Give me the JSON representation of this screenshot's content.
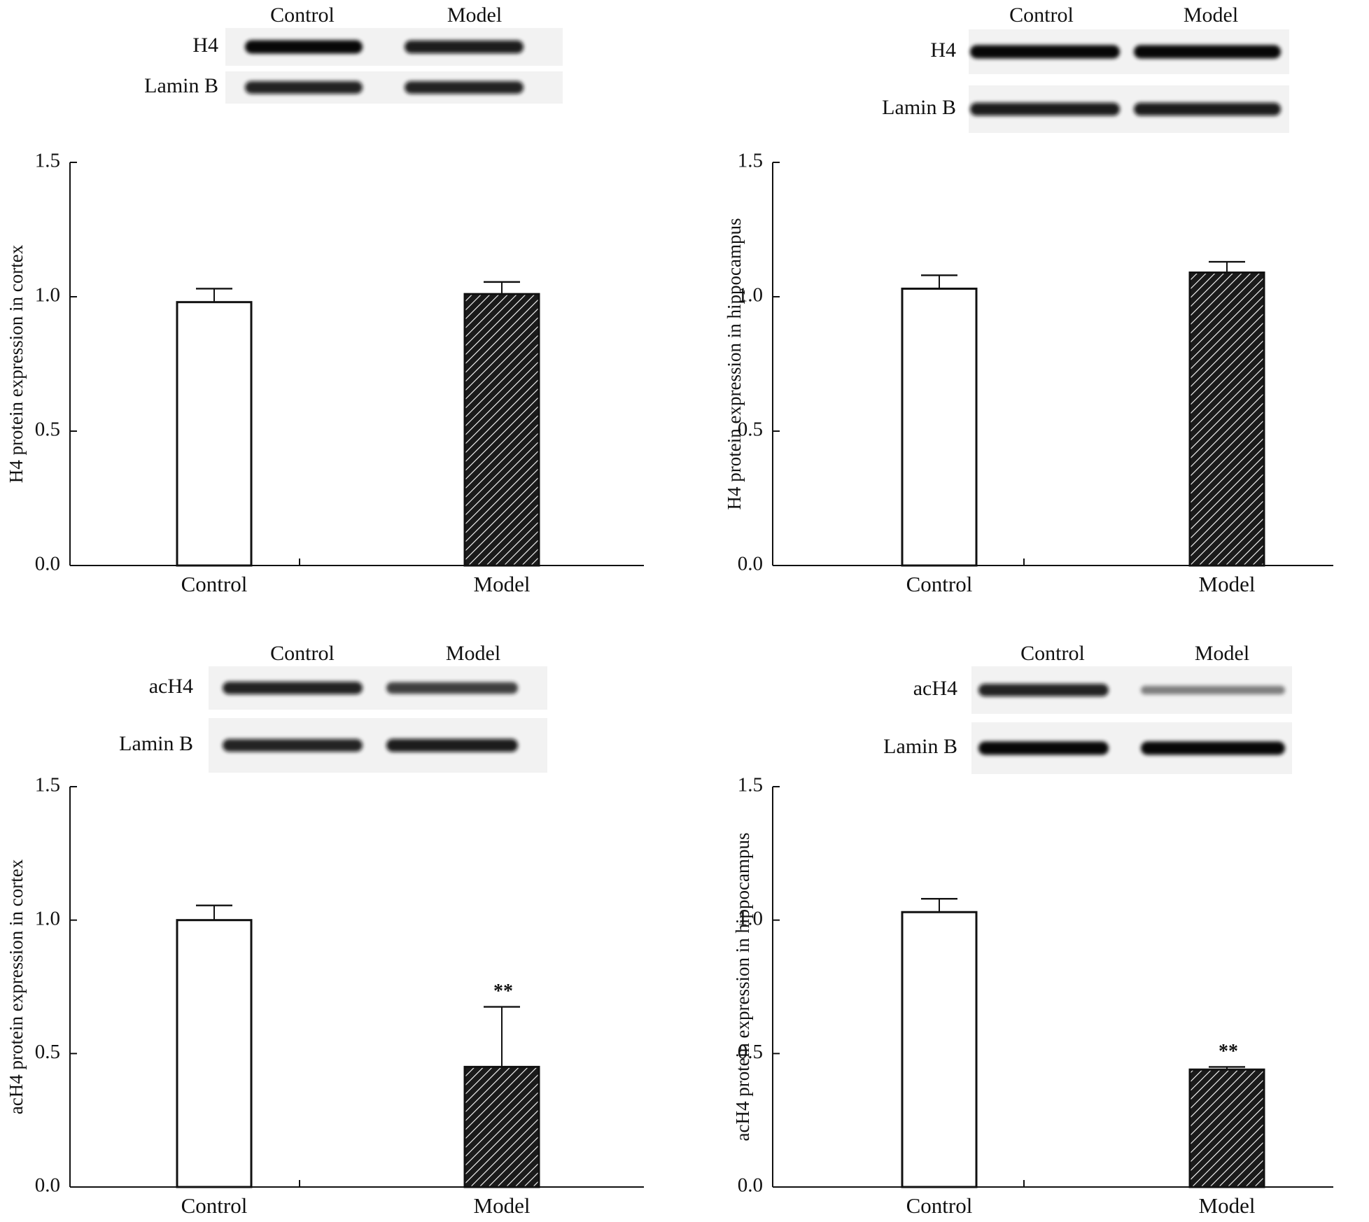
{
  "figure": {
    "panels": [
      {
        "id": "h4-cortex",
        "blot": {
          "lanes": [
            "Control",
            "Model"
          ],
          "rows": [
            {
              "label": "H4",
              "intensity": [
                0.95,
                0.9
              ]
            },
            {
              "label": "Lamin B",
              "intensity": [
                0.85,
                0.85
              ]
            }
          ]
        }
      },
      {
        "id": "h4-hippocampus",
        "blot": {
          "lanes": [
            "Control",
            "Model"
          ],
          "rows": [
            {
              "label": "H4",
              "intensity": [
                0.95,
                0.95
              ]
            },
            {
              "label": "Lamin B",
              "intensity": [
                0.9,
                0.9
              ]
            }
          ]
        }
      },
      {
        "id": "ach4-cortex",
        "blot": {
          "lanes": [
            "Control",
            "Model"
          ],
          "rows": [
            {
              "label": "acH4",
              "intensity": [
                0.85,
                0.75
              ]
            },
            {
              "label": "Lamin B",
              "intensity": [
                0.85,
                0.9
              ]
            }
          ]
        }
      },
      {
        "id": "ach4-hippocampus",
        "blot": {
          "lanes": [
            "Control",
            "Model"
          ],
          "rows": [
            {
              "label": "acH4",
              "intensity": [
                0.85,
                0.45
              ]
            },
            {
              "label": "Lamin B",
              "intensity": [
                0.95,
                0.95
              ]
            }
          ]
        }
      }
    ]
  },
  "chart_data": [
    {
      "type": "bar",
      "categories": [
        "Control",
        "Model"
      ],
      "values": [
        0.98,
        1.01
      ],
      "errors": [
        0.05,
        0.045
      ],
      "significance": [
        "",
        ""
      ],
      "ylabel": "H4 protein expression in cortex",
      "ylim": [
        0,
        1.5
      ],
      "yticks": [
        "0.0",
        "0.5",
        "1.0",
        "1.5"
      ],
      "bar_styles": [
        "open",
        "hatched"
      ]
    },
    {
      "type": "bar",
      "categories": [
        "Control",
        "Model"
      ],
      "values": [
        1.03,
        1.09
      ],
      "errors": [
        0.05,
        0.04
      ],
      "significance": [
        "",
        ""
      ],
      "ylabel": "H4 protein expression in hippocampus",
      "ylim": [
        0,
        1.5
      ],
      "yticks": [
        "0.0",
        "0.5",
        "1.0",
        "1.5"
      ],
      "bar_styles": [
        "open",
        "hatched"
      ]
    },
    {
      "type": "bar",
      "categories": [
        "Control",
        "Model"
      ],
      "values": [
        1.0,
        0.45
      ],
      "errors": [
        0.055,
        0.225
      ],
      "significance": [
        "",
        "**"
      ],
      "ylabel": "acH4 protein expression in cortex",
      "ylim": [
        0,
        1.5
      ],
      "yticks": [
        "0.0",
        "0.5",
        "1.0",
        "1.5"
      ],
      "bar_styles": [
        "open",
        "hatched"
      ]
    },
    {
      "type": "bar",
      "categories": [
        "Control",
        "Model"
      ],
      "values": [
        1.03,
        0.44
      ],
      "errors": [
        0.05,
        0.01
      ],
      "significance": [
        "",
        "**"
      ],
      "ylabel": "acH4 protein expression in hippocampus",
      "ylim": [
        0,
        1.5
      ],
      "yticks": [
        "0.0",
        "0.5",
        "1.0",
        "1.5"
      ],
      "bar_styles": [
        "open",
        "hatched"
      ]
    }
  ]
}
